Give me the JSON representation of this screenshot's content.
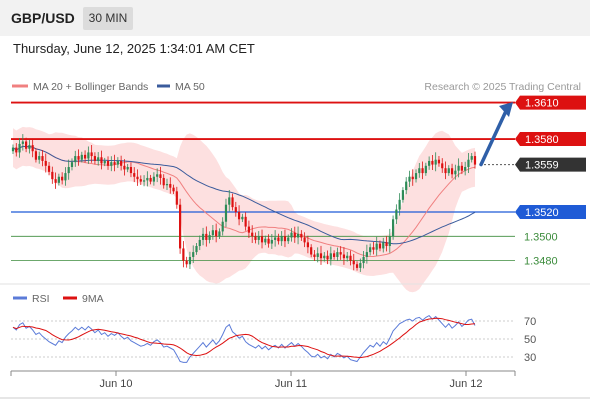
{
  "header": {
    "symbol": "GBP/USD",
    "timeframe": "30 MIN",
    "datetime": "Thursday, June 12, 2025 1:34:01 AM CET"
  },
  "legend": {
    "ma20": "MA 20 + Bollinger Bands",
    "ma50": "MA 50",
    "copyright": "Research © 2025 Trading Central"
  },
  "colors": {
    "ma20": "#f08080",
    "ma50": "#3a5b9c",
    "bands_fill": "#fde0e0",
    "up": "#2e8b57",
    "down": "#d11",
    "resistance": "#dd1111",
    "support_blue": "#1f5bd6",
    "support_green": "#3c8c3c",
    "rsi": "#5b7bd8",
    "rsi_ma": "#dd1111",
    "arrow": "#2f5fa8"
  },
  "chart_data": [
    {
      "type": "candlestick",
      "title": "",
      "series": [
        {
          "name": "MA 20 + Bollinger Bands"
        },
        {
          "name": "MA 50"
        }
      ],
      "x_ticks": [
        "Jun 10",
        "Jun 11",
        "Jun 12"
      ],
      "ylim": [
        1.3455,
        1.3622
      ],
      "key_levels": [
        {
          "value": 1.361,
          "label": "1.3610",
          "kind": "resistance",
          "style": "line+flag"
        },
        {
          "value": 1.358,
          "label": "1.3580",
          "kind": "resistance",
          "style": "line+flag"
        },
        {
          "value": 1.3559,
          "label": "1.3559",
          "kind": "last-price",
          "style": "dotted+flag"
        },
        {
          "value": 1.352,
          "label": "1.3520",
          "kind": "support",
          "style": "line+flag"
        },
        {
          "value": 1.35,
          "label": "1.3500",
          "kind": "support",
          "style": "line"
        },
        {
          "value": 1.348,
          "label": "1.3480",
          "kind": "support",
          "style": "line"
        }
      ],
      "close": [
        1.3573,
        1.3569,
        1.3576,
        1.3578,
        1.3572,
        1.3575,
        1.357,
        1.3563,
        1.3566,
        1.3562,
        1.3558,
        1.3553,
        1.3547,
        1.3544,
        1.3549,
        1.3546,
        1.3552,
        1.3557,
        1.3561,
        1.3566,
        1.3563,
        1.3567,
        1.3564,
        1.3569,
        1.3566,
        1.3562,
        1.3565,
        1.356,
        1.3562,
        1.3558,
        1.3561,
        1.3559,
        1.3562,
        1.3558,
        1.3555,
        1.3557,
        1.3552,
        1.3549,
        1.3547,
        1.3545,
        1.3546,
        1.3548,
        1.3545,
        1.3549,
        1.3551,
        1.3548,
        1.3542,
        1.3543,
        1.354,
        1.3537,
        1.3526,
        1.349,
        1.348,
        1.3477,
        1.3483,
        1.3487,
        1.3492,
        1.3497,
        1.3502,
        1.3497,
        1.3501,
        1.3505,
        1.35,
        1.3504,
        1.3512,
        1.3526,
        1.3532,
        1.3524,
        1.352,
        1.3514,
        1.3516,
        1.3508,
        1.3503,
        1.35,
        1.3497,
        1.35,
        1.3495,
        1.3498,
        1.3494,
        1.3497,
        1.3499,
        1.3496,
        1.35,
        1.3496,
        1.3499,
        1.3503,
        1.3499,
        1.3502,
        1.3499,
        1.3495,
        1.3491,
        1.3485,
        1.3483,
        1.3486,
        1.3482,
        1.3484,
        1.3481,
        1.3486,
        1.3483,
        1.3487,
        1.3485,
        1.3482,
        1.3484,
        1.348,
        1.3477,
        1.3474,
        1.3478,
        1.3483,
        1.3487,
        1.3491,
        1.3489,
        1.3494,
        1.349,
        1.3495,
        1.3492,
        1.35,
        1.3514,
        1.3522,
        1.353,
        1.3538,
        1.3545,
        1.3549,
        1.3547,
        1.3552,
        1.3556,
        1.3552,
        1.3558,
        1.3562,
        1.3559,
        1.3563,
        1.356,
        1.3556,
        1.3552,
        1.3556,
        1.3551,
        1.3554,
        1.3558,
        1.3554,
        1.3557,
        1.3563,
        1.3566,
        1.3559
      ]
    },
    {
      "type": "line",
      "title": "",
      "series": [
        {
          "name": "RSI"
        },
        {
          "name": "9MA"
        }
      ],
      "y_ticks": [
        70,
        50,
        30
      ],
      "ylim": [
        20,
        80
      ],
      "rsi": [
        63,
        60,
        66,
        68,
        62,
        64,
        60,
        55,
        57,
        53,
        50,
        47,
        45,
        43,
        48,
        46,
        52,
        56,
        59,
        63,
        60,
        63,
        60,
        64,
        61,
        57,
        60,
        55,
        57,
        53,
        56,
        54,
        57,
        53,
        50,
        52,
        48,
        46,
        44,
        42,
        43,
        45,
        43,
        47,
        49,
        46,
        41,
        42,
        40,
        38,
        32,
        25,
        24,
        24,
        30,
        34,
        38,
        42,
        46,
        41,
        45,
        49,
        44,
        48,
        55,
        63,
        66,
        58,
        55,
        51,
        53,
        47,
        44,
        42,
        40,
        43,
        39,
        42,
        38,
        41,
        43,
        40,
        44,
        40,
        43,
        46,
        42,
        45,
        42,
        38,
        35,
        31,
        30,
        33,
        29,
        31,
        28,
        33,
        30,
        34,
        32,
        29,
        31,
        27,
        26,
        25,
        30,
        35,
        39,
        43,
        41,
        46,
        42,
        47,
        44,
        51,
        59,
        63,
        67,
        69,
        71,
        72,
        70,
        73,
        74,
        71,
        74,
        76,
        72,
        75,
        71,
        67,
        63,
        67,
        62,
        65,
        69,
        64,
        67,
        71,
        72,
        65
      ]
    }
  ]
}
